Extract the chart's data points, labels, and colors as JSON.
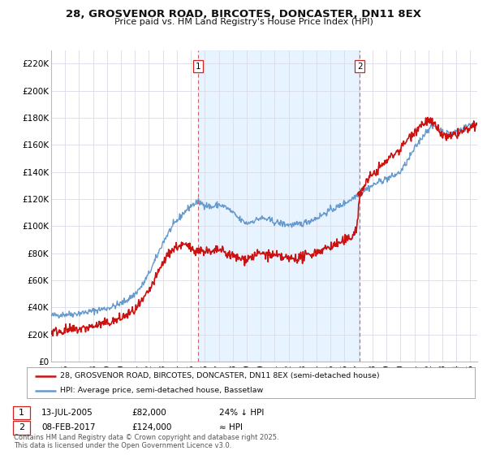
{
  "title1": "28, GROSVENOR ROAD, BIRCOTES, DONCASTER, DN11 8EX",
  "title2": "Price paid vs. HM Land Registry's House Price Index (HPI)",
  "background_color": "#ffffff",
  "plot_bg_color": "#ffffff",
  "grid_color": "#d8dce8",
  "hpi_color": "#6699cc",
  "price_color": "#cc1111",
  "shade_color": "#ddeeff",
  "vline_color": "#cc6666",
  "ylim": [
    0,
    230000
  ],
  "yticks": [
    0,
    20000,
    40000,
    60000,
    80000,
    100000,
    120000,
    140000,
    160000,
    180000,
    200000,
    220000
  ],
  "ytick_labels": [
    "£0",
    "£20K",
    "£40K",
    "£60K",
    "£80K",
    "£100K",
    "£120K",
    "£140K",
    "£160K",
    "£180K",
    "£200K",
    "£220K"
  ],
  "xlim_start": 1995.0,
  "xlim_end": 2025.5,
  "sale1_date": 2005.53,
  "sale1_price": 82000,
  "sale1_label": "1",
  "sale2_date": 2017.1,
  "sale2_price": 124000,
  "sale2_label": "2",
  "legend_line1": "28, GROSVENOR ROAD, BIRCOTES, DONCASTER, DN11 8EX (semi-detached house)",
  "legend_line2": "HPI: Average price, semi-detached house, Bassetlaw",
  "ann1_date": "13-JUL-2005",
  "ann1_price": "£82,000",
  "ann1_note": "24% ↓ HPI",
  "ann2_date": "08-FEB-2017",
  "ann2_price": "£124,000",
  "ann2_note": "≈ HPI",
  "copyright": "Contains HM Land Registry data © Crown copyright and database right 2025.\nThis data is licensed under the Open Government Licence v3.0."
}
